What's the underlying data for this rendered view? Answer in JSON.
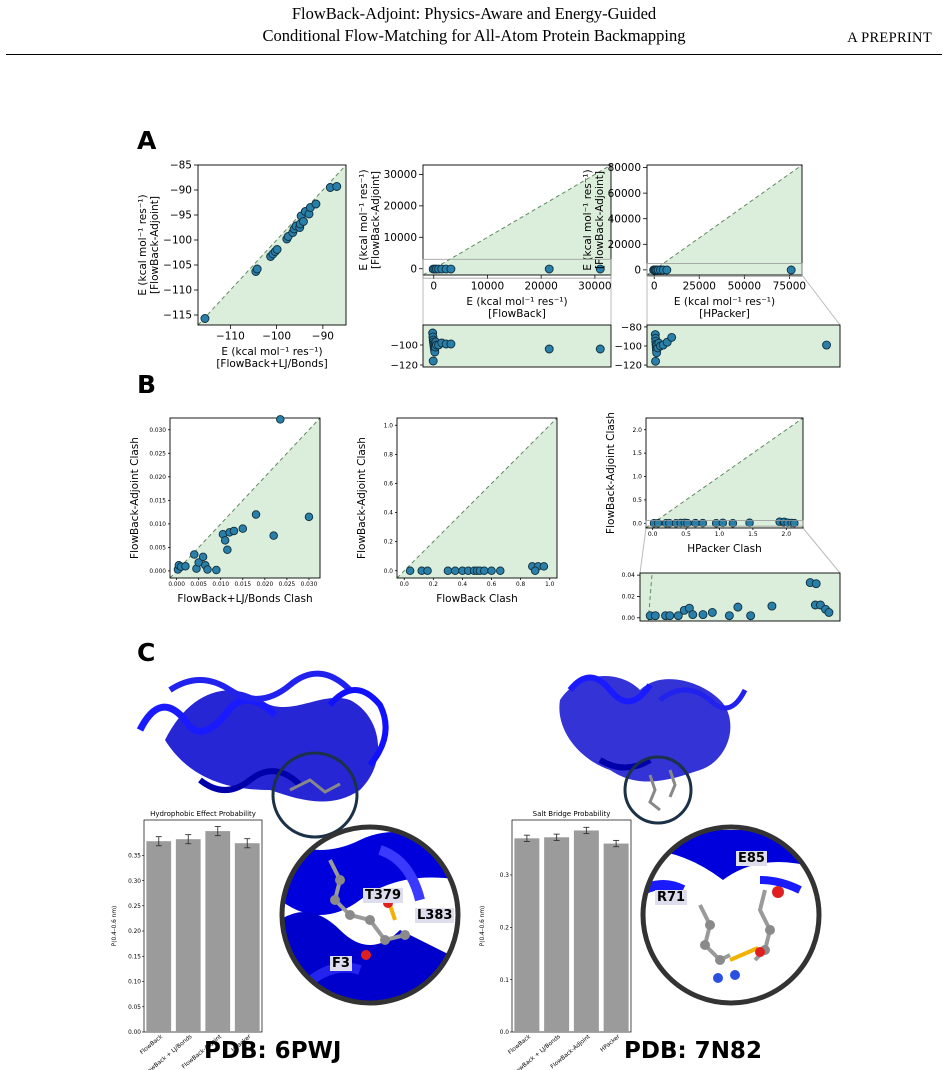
{
  "header": {
    "title_line1": "FlowBack-Adjoint: Physics-Aware and Energy-Guided",
    "title_line2": "Conditional Flow-Matching for All-Atom Protein Backmapping",
    "preprint": "A PREPRINT"
  },
  "panels": {
    "a": "A",
    "b": "B",
    "c": "C"
  },
  "colors": {
    "fill": "#dbeddb",
    "marker": "#2a7fa8",
    "bar": "#9b9b9b",
    "ribbon": "#0000dd"
  },
  "chart_data": [
    {
      "id": "A1",
      "type": "scatter",
      "xlabel_line1": "E  (kcal mol⁻¹ res⁻¹)",
      "xlabel_line2": "[FlowBack+LJ/Bonds]",
      "ylabel_line1": "E  (kcal mol⁻¹ res⁻¹)",
      "ylabel_line2": "[FlowBack-Adjoint]",
      "xlim": [
        -117,
        -85
      ],
      "ylim": [
        -117,
        -85
      ],
      "xticks": [
        -110,
        -100,
        -90
      ],
      "xticklabels": [
        "−110",
        "−100",
        "−90"
      ],
      "yticks": [
        -115,
        -110,
        -105,
        -100,
        -95,
        -90,
        -85
      ],
      "yticklabels": [
        "−115",
        "−110",
        "−105",
        "−100",
        "−95",
        "−90",
        "−85"
      ],
      "diagonal": true,
      "points": [
        [
          -115.5,
          -115.7
        ],
        [
          -104.5,
          -106.3
        ],
        [
          -104.2,
          -105.8
        ],
        [
          -101.3,
          -103.3
        ],
        [
          -100.8,
          -102.8
        ],
        [
          -100.3,
          -102.3
        ],
        [
          -99.9,
          -101.9
        ],
        [
          -97.8,
          -99.8
        ],
        [
          -97.5,
          -99.3
        ],
        [
          -96.5,
          -98.5
        ],
        [
          -96.2,
          -97.8
        ],
        [
          -95.8,
          -97.2
        ],
        [
          -95,
          -97.5
        ],
        [
          -94.9,
          -96.8
        ],
        [
          -94.7,
          -95.2
        ],
        [
          -94.2,
          -96.3
        ],
        [
          -93.8,
          -94.3
        ],
        [
          -93,
          -94.8
        ],
        [
          -92.7,
          -93.5
        ],
        [
          -91.5,
          -92.8
        ],
        [
          -88.4,
          -89.5
        ],
        [
          -87,
          -89.3
        ]
      ]
    },
    {
      "id": "A2",
      "type": "scatter",
      "xlabel_line1": "E  (kcal mol⁻¹ res⁻¹)",
      "xlabel_line2": "[FlowBack]",
      "ylabel_line1": "E  (kcal mol⁻¹ res⁻¹)",
      "ylabel_line2": "[FlowBack-Adjoint]",
      "xlim": [
        -2000,
        33000
      ],
      "ylim": [
        -2000,
        33000
      ],
      "xticks": [
        0,
        10000,
        20000,
        30000
      ],
      "xticklabels": [
        "0",
        "10000",
        "20000",
        "30000"
      ],
      "yticks": [
        0,
        10000,
        20000,
        30000
      ],
      "yticklabels": [
        "0",
        "10000",
        "20000",
        "30000"
      ],
      "diagonal": true,
      "points": [
        [
          -100,
          -100
        ],
        [
          200,
          -100
        ],
        [
          500,
          -100
        ],
        [
          900,
          -100
        ],
        [
          1500,
          -100
        ],
        [
          2300,
          -100
        ],
        [
          3200,
          -100
        ],
        [
          21500,
          -100
        ],
        [
          31000,
          -100
        ]
      ]
    },
    {
      "id": "A2inset",
      "type": "scatter",
      "xlim": [
        -2000,
        33000
      ],
      "ylim": [
        -122,
        -80
      ],
      "yticks": [
        -100,
        -120
      ],
      "yticklabels": [
        "−100",
        "−120"
      ],
      "points": [
        [
          -200,
          -88
        ],
        [
          -150,
          -92
        ],
        [
          -100,
          -95
        ],
        [
          -50,
          -97
        ],
        [
          0,
          -99
        ],
        [
          50,
          -101
        ],
        [
          100,
          -103
        ],
        [
          150,
          -105
        ],
        [
          200,
          -107
        ],
        [
          -100,
          -116
        ],
        [
          250,
          -99
        ],
        [
          300,
          -102
        ],
        [
          400,
          -97
        ],
        [
          500,
          -100
        ],
        [
          900,
          -100
        ],
        [
          1500,
          -98
        ],
        [
          2300,
          -99
        ],
        [
          3200,
          -99
        ],
        [
          21500,
          -104
        ],
        [
          31000,
          -104
        ]
      ]
    },
    {
      "id": "A3",
      "type": "scatter",
      "xlabel_line1": "E  (kcal mol⁻¹ res⁻¹)",
      "xlabel_line2": "[HPacker]",
      "ylabel_line1": "E  (kcal mol⁻¹ res⁻¹)",
      "ylabel_line2": "[FlowBack-Adjoint]",
      "xlim": [
        -4000,
        82000
      ],
      "ylim": [
        -4000,
        82000
      ],
      "xticks": [
        0,
        25000,
        50000,
        75000
      ],
      "xticklabels": [
        "0",
        "25000",
        "50000",
        "75000"
      ],
      "yticks": [
        0,
        20000,
        40000,
        60000,
        80000
      ],
      "yticklabels": [
        "0",
        "20000",
        "40000",
        "60000",
        "80000"
      ],
      "diagonal": true,
      "points": [
        [
          -300,
          -100
        ],
        [
          200,
          -100
        ],
        [
          700,
          -100
        ],
        [
          1400,
          -100
        ],
        [
          2200,
          -100
        ],
        [
          3500,
          -100
        ],
        [
          5000,
          -100
        ],
        [
          7000,
          -100
        ],
        [
          76000,
          -100
        ]
      ]
    },
    {
      "id": "A3inset",
      "type": "scatter",
      "xlim": [
        -4000,
        82000
      ],
      "ylim": [
        -122,
        -78
      ],
      "yticks": [
        -80,
        -100,
        -120
      ],
      "yticklabels": [
        "−80",
        "−100",
        "−120"
      ],
      "points": [
        [
          -300,
          -88
        ],
        [
          -200,
          -92
        ],
        [
          -100,
          -95
        ],
        [
          0,
          -98
        ],
        [
          100,
          -101
        ],
        [
          200,
          -104
        ],
        [
          300,
          -107
        ],
        [
          -200,
          -116
        ],
        [
          400,
          -99
        ],
        [
          800,
          -102
        ],
        [
          1300,
          -97
        ],
        [
          2000,
          -100
        ],
        [
          3200,
          -99
        ],
        [
          5000,
          -96
        ],
        [
          7000,
          -91
        ],
        [
          76000,
          -99
        ]
      ]
    },
    {
      "id": "B1",
      "type": "scatter",
      "xlabel": "FlowBack+LJ/Bonds Clash",
      "ylabel": "FlowBack-Adjoint Clash",
      "xlim": [
        -0.0015,
        0.0325
      ],
      "ylim": [
        -0.0015,
        0.0325
      ],
      "xticks": [
        0,
        0.005,
        0.01,
        0.015,
        0.02,
        0.025,
        0.03
      ],
      "xticklabels": [
        "0.000",
        "0.005",
        "0.010",
        "0.015",
        "0.020",
        "0.025",
        "0.030"
      ],
      "yticks": [
        0,
        0.005,
        0.01,
        0.015,
        0.02,
        0.025,
        0.03
      ],
      "yticklabels": [
        "0.000",
        "0.005",
        "0.010",
        "0.015",
        "0.020",
        "0.025",
        "0.030"
      ],
      "diagonal": true,
      "points": [
        [
          0.0003,
          0.0003
        ],
        [
          0.0005,
          0.0012
        ],
        [
          0.001,
          0.0009
        ],
        [
          0.002,
          0.001
        ],
        [
          0.004,
          0.0035
        ],
        [
          0.0045,
          0.0005
        ],
        [
          0.005,
          0.0018
        ],
        [
          0.006,
          0.003
        ],
        [
          0.0065,
          0.0012
        ],
        [
          0.007,
          0.0003
        ],
        [
          0.009,
          0.0002
        ],
        [
          0.0105,
          0.0078
        ],
        [
          0.011,
          0.0065
        ],
        [
          0.0115,
          0.0045
        ],
        [
          0.012,
          0.0082
        ],
        [
          0.013,
          0.0085
        ],
        [
          0.015,
          0.009
        ],
        [
          0.018,
          0.012
        ],
        [
          0.022,
          0.0075
        ],
        [
          0.0235,
          0.0322
        ],
        [
          0.03,
          0.0115
        ]
      ]
    },
    {
      "id": "B2",
      "type": "scatter",
      "xlabel": "FlowBack Clash",
      "ylabel": "FlowBack-Adjoint Clash",
      "xlim": [
        -0.05,
        1.05
      ],
      "ylim": [
        -0.05,
        1.05
      ],
      "xticks": [
        0,
        0.2,
        0.4,
        0.6,
        0.8,
        1.0
      ],
      "xticklabels": [
        "0.0",
        "0.2",
        "0.4",
        "0.6",
        "0.8",
        "1.0"
      ],
      "yticks": [
        0,
        0.2,
        0.4,
        0.6,
        0.8,
        1.0
      ],
      "yticklabels": [
        "0.0",
        "0.2",
        "0.4",
        "0.6",
        "0.8",
        "1.0"
      ],
      "diagonal": true,
      "points": [
        [
          0.04,
          0
        ],
        [
          0.12,
          0
        ],
        [
          0.16,
          0
        ],
        [
          0.3,
          0
        ],
        [
          0.35,
          0
        ],
        [
          0.4,
          0
        ],
        [
          0.44,
          0
        ],
        [
          0.48,
          0
        ],
        [
          0.5,
          0
        ],
        [
          0.52,
          0
        ],
        [
          0.55,
          0
        ],
        [
          0.6,
          0
        ],
        [
          0.66,
          0
        ],
        [
          0.88,
          0.03
        ],
        [
          0.92,
          0.03
        ],
        [
          0.96,
          0.03
        ],
        [
          0.9,
          0
        ]
      ]
    },
    {
      "id": "B3",
      "type": "scatter",
      "xlabel": "HPacker Clash",
      "ylabel": "FlowBack-Adjoint Clash",
      "xlim": [
        -0.1,
        2.25
      ],
      "ylim": [
        -0.1,
        2.25
      ],
      "xticks": [
        0,
        0.5,
        1.0,
        1.5,
        2.0
      ],
      "xticklabels": [
        "0.0",
        "0.5",
        "1.0",
        "1.5",
        "2.0"
      ],
      "yticks": [
        0,
        0.5,
        1.0,
        1.5,
        2.0
      ],
      "yticklabels": [
        "0.0",
        "0.5",
        "1.0",
        "1.5",
        "2.0"
      ],
      "diagonal": true,
      "points": [
        [
          0.02,
          0.002
        ],
        [
          0.08,
          0.002
        ],
        [
          0.2,
          0.002
        ],
        [
          0.25,
          0.002
        ],
        [
          0.35,
          0.002
        ],
        [
          0.42,
          0.007
        ],
        [
          0.48,
          0.009
        ],
        [
          0.52,
          0.003
        ],
        [
          0.64,
          0.003
        ],
        [
          0.75,
          0.005
        ],
        [
          0.95,
          0.002
        ],
        [
          1.05,
          0.01
        ],
        [
          1.2,
          0.002
        ],
        [
          1.45,
          0.011
        ],
        [
          1.9,
          0.033
        ],
        [
          1.96,
          0.012
        ],
        [
          1.97,
          0.032
        ],
        [
          2.02,
          0.012
        ],
        [
          2.08,
          0.008
        ],
        [
          2.12,
          0.005
        ]
      ]
    },
    {
      "id": "B3inset",
      "type": "scatter",
      "xlim": [
        -0.1,
        2.25
      ],
      "ylim": [
        -0.003,
        0.042
      ],
      "yticks": [
        0,
        0.02,
        0.04
      ],
      "yticklabels": [
        "0.00",
        "0.02",
        "0.04"
      ],
      "diagonal": true,
      "points": [
        [
          0.02,
          0.002
        ],
        [
          0.08,
          0.002
        ],
        [
          0.2,
          0.002
        ],
        [
          0.25,
          0.002
        ],
        [
          0.35,
          0.002
        ],
        [
          0.42,
          0.007
        ],
        [
          0.48,
          0.009
        ],
        [
          0.52,
          0.003
        ],
        [
          0.64,
          0.003
        ],
        [
          0.75,
          0.005
        ],
        [
          0.95,
          0.002
        ],
        [
          1.05,
          0.01
        ],
        [
          1.2,
          0.002
        ],
        [
          1.45,
          0.011
        ],
        [
          1.9,
          0.033
        ],
        [
          1.96,
          0.012
        ],
        [
          1.97,
          0.032
        ],
        [
          2.02,
          0.012
        ],
        [
          2.08,
          0.008
        ],
        [
          2.12,
          0.005
        ]
      ]
    },
    {
      "id": "C1",
      "type": "bar",
      "title": "Hydrophobic Effect Probability",
      "ylabel": "P(0.4–0.6 nm)",
      "categories": [
        "FlowBack",
        "FlowBack + LJ/Bonds",
        "FlowBack-Adjoint",
        "HPacker"
      ],
      "values": [
        0.378,
        0.382,
        0.398,
        0.374
      ],
      "errors": [
        0.009,
        0.009,
        0.009,
        0.009
      ],
      "ylim": [
        0,
        0.42
      ],
      "yticks": [
        0,
        0.05,
        0.1,
        0.15,
        0.2,
        0.25,
        0.3,
        0.35
      ],
      "yticklabels": [
        "0.00",
        "0.05",
        "0.10",
        "0.15",
        "0.20",
        "0.25",
        "0.30",
        "0.35"
      ]
    },
    {
      "id": "C2",
      "type": "bar",
      "title": "Salt Bridge Probability",
      "ylabel": "P(0.4–0.6 nm)",
      "categories": [
        "FlowBack",
        "FlowBack + LJ/Bonds",
        "FlowBack-Adjoint",
        "HPacker"
      ],
      "values": [
        0.37,
        0.372,
        0.385,
        0.36
      ],
      "errors": [
        0.006,
        0.006,
        0.006,
        0.006
      ],
      "ylim": [
        0,
        0.405
      ],
      "yticks": [
        0,
        0.1,
        0.2,
        0.3
      ],
      "yticklabels": [
        "0.0",
        "0.1",
        "0.2",
        "0.3"
      ]
    }
  ],
  "structure_left": {
    "pdb": "PDB: 6PWJ",
    "labels": [
      "T379",
      "L383",
      "F3"
    ]
  },
  "structure_right": {
    "pdb": "PDB: 7N82",
    "labels": [
      "E85",
      "R71"
    ]
  }
}
